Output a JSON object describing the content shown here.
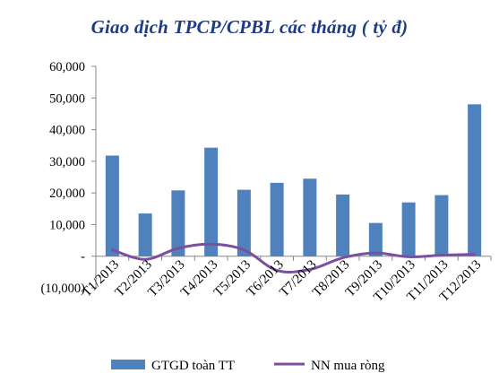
{
  "chart_data": {
    "type": "bar+line",
    "title": "Giao dịch TPCP/CPBL các tháng ( tỷ đ)",
    "categories": [
      "T1/2013",
      "T2/2013",
      "T3/2013",
      "T4/2013",
      "T5/2013",
      "T6/2013",
      "T7/2013",
      "T8/2013",
      "T9/2013",
      "T10/2013",
      "T11/2013",
      "T12/2013"
    ],
    "series": [
      {
        "name": "GTGD toàn TT",
        "type": "bar",
        "color": "#4f81bd",
        "values": [
          31800,
          13500,
          20800,
          34300,
          21000,
          23200,
          24500,
          19500,
          10500,
          17000,
          19300,
          48000
        ]
      },
      {
        "name": "NN mua ròng",
        "type": "line",
        "color": "#7b4f9e",
        "values": [
          2000,
          -1000,
          2500,
          3800,
          2000,
          -4500,
          -4200,
          -500,
          1000,
          -200,
          300,
          600
        ]
      }
    ],
    "yticks": [
      60000,
      50000,
      40000,
      30000,
      20000,
      10000,
      0,
      -10000
    ],
    "ytick_labels": [
      "60,000",
      "50,000",
      "40,000",
      "30,000",
      "20,000",
      "10,000",
      "-",
      "(10,000)"
    ],
    "ylim": [
      -10000,
      60000
    ],
    "grid": false,
    "legend": "bottom"
  }
}
